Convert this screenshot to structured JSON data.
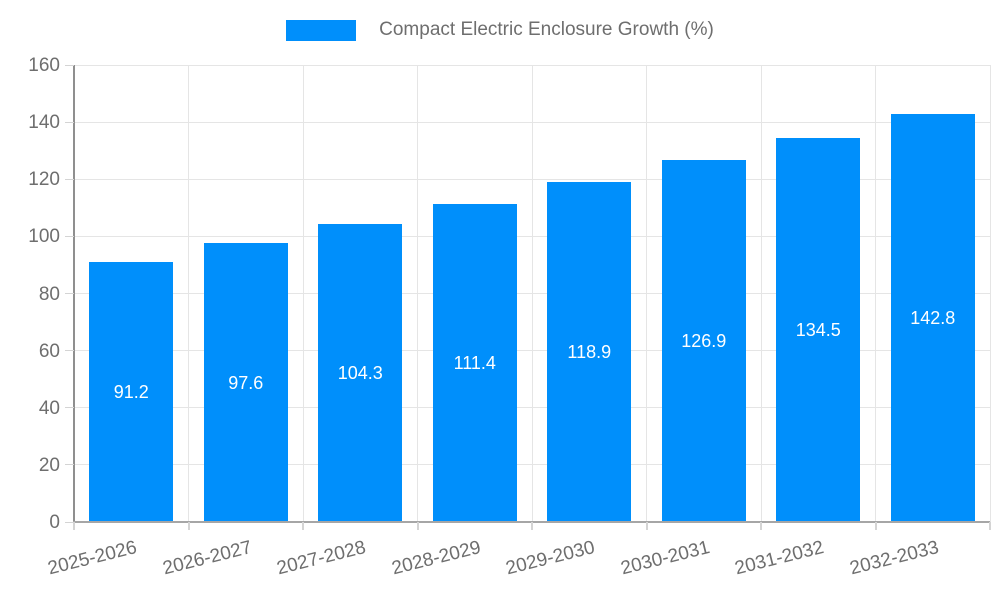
{
  "chart_data": {
    "type": "bar",
    "title": "Compact Electric Enclosure Growth (%)",
    "categories": [
      "2025-2026",
      "2026-2027",
      "2027-2028",
      "2028-2029",
      "2029-2030",
      "2030-2031",
      "2031-2032",
      "2032-2033"
    ],
    "series": [
      {
        "name": "Compact Electric Enclosure Growth (%)",
        "values": [
          91.2,
          97.6,
          104.3,
          111.4,
          118.9,
          126.9,
          134.5,
          142.8
        ]
      }
    ],
    "value_label_decimals": 1,
    "xlabel": "",
    "ylabel": "",
    "ylim": [
      0,
      160
    ],
    "y_ticks": [
      0,
      20,
      40,
      60,
      80,
      100,
      120,
      140,
      160
    ],
    "grid": true,
    "legend_position": "top",
    "colors": {
      "bar": "#008FFB",
      "bar_label": "#FFFFFF",
      "axis_text": "#6E6E6E",
      "legend_text": "#6E6E6E",
      "grid_line": "#E5E5E5",
      "axis_line_y": "#8F8F8F",
      "axis_line_x": "#A6A6A6",
      "tick_mark": "#D4D4D4",
      "background": "#FFFFFF"
    }
  }
}
